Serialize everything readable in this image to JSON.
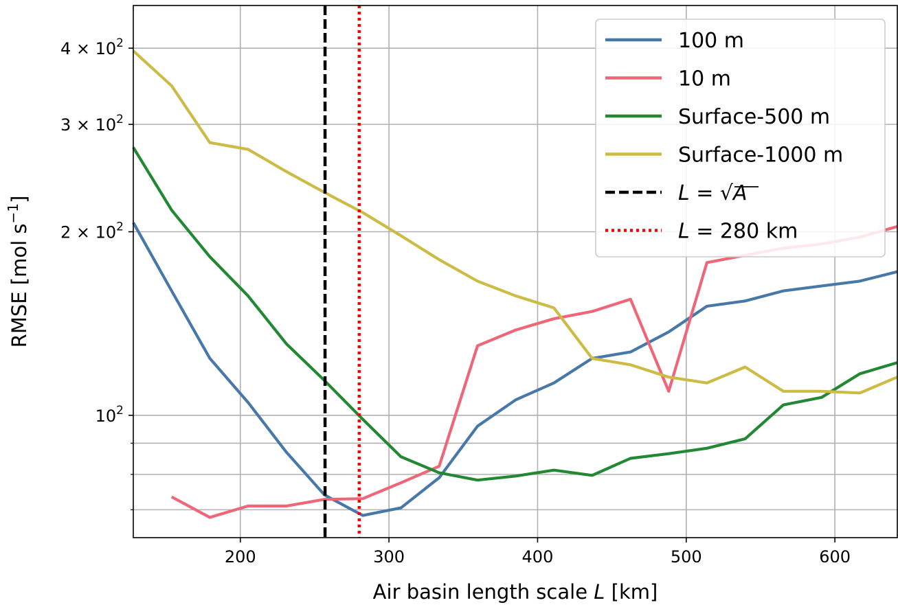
{
  "chart_data": {
    "type": "line",
    "title": "",
    "xlabel": "Air basin length scale L [km]",
    "ylabel": "RMSE [mol s⁻¹]",
    "xlim": [
      128,
      642
    ],
    "ylim": [
      63,
      470
    ],
    "yscale": "log",
    "grid": true,
    "legend_position": "top-right",
    "x_ticks": [
      {
        "value": 200,
        "label": "200"
      },
      {
        "value": 300,
        "label": "300"
      },
      {
        "value": 400,
        "label": "400"
      },
      {
        "value": 500,
        "label": "500"
      },
      {
        "value": 600,
        "label": "600"
      }
    ],
    "y_major_ticks": [
      {
        "value": 100,
        "label": "10²"
      },
      {
        "value": 200,
        "label": "2 × 10²"
      },
      {
        "value": 300,
        "label": "3 × 10²"
      },
      {
        "value": 400,
        "label": "4 × 10²"
      }
    ],
    "y_minor_grid": [
      70,
      80,
      90
    ],
    "series": [
      {
        "name": "100 m",
        "color": "#4878a8",
        "style": "solid",
        "x": [
          128,
          153.8,
          179.5,
          205.2,
          231,
          256.7,
          282.4,
          308.1,
          333.8,
          359.6,
          385.3,
          411,
          436.7,
          462.5,
          488.2,
          513.9,
          539.6,
          565.3,
          591.1,
          616.8,
          642
        ],
        "y": [
          207,
          160,
          124,
          105,
          87,
          74,
          68.5,
          70.5,
          79,
          96,
          106,
          113,
          124,
          127,
          137,
          151,
          154,
          160,
          163,
          166,
          172
        ]
      },
      {
        "name": "10 m",
        "color": "#ee6677",
        "style": "solid",
        "x": [
          153.8,
          179.5,
          205.2,
          231,
          256.7,
          282.4,
          308.1,
          333.8,
          359.6,
          385.3,
          411,
          436.7,
          462.5,
          488.2,
          513.9,
          539.6,
          565.3,
          591.1,
          616.8,
          642
        ],
        "y": [
          73.5,
          68,
          71,
          71,
          72.8,
          73,
          77.5,
          82.5,
          130,
          138,
          144,
          148,
          155,
          109.5,
          178,
          183,
          188,
          191,
          196,
          204
        ]
      },
      {
        "name": "Surface-500 m",
        "color": "#228833",
        "style": "solid",
        "x": [
          128,
          153.8,
          179.5,
          205.2,
          231,
          256.7,
          282.4,
          308.1,
          333.8,
          359.6,
          385.3,
          411,
          436.7,
          462.5,
          488.2,
          513.9,
          539.6,
          565.3,
          591.1,
          616.8,
          642
        ],
        "y": [
          275,
          217,
          182,
          157,
          131,
          114,
          98.5,
          85.5,
          80.5,
          78.3,
          79.5,
          81.3,
          79.7,
          85,
          86.5,
          88.3,
          91.5,
          104,
          107,
          117,
          122
        ]
      },
      {
        "name": "Surface-1000 m",
        "color": "#ccbb44",
        "style": "solid",
        "x": [
          128,
          153.8,
          179.5,
          205.2,
          231,
          256.7,
          282.4,
          308.1,
          333.8,
          359.6,
          385.3,
          411,
          436.7,
          462.5,
          488.2,
          513.9,
          539.6,
          565.3,
          591.1,
          616.8,
          642
        ],
        "y": [
          396,
          347,
          280,
          273,
          251,
          232,
          215,
          197,
          180,
          166,
          157,
          150,
          124,
          121,
          115.5,
          113,
          120,
          109.5,
          109.5,
          108.8,
          115.5
        ]
      },
      {
        "name": "L = √A",
        "color": "#000000",
        "style": "dashed",
        "vertical_x": 257
      },
      {
        "name": "L = 280 km",
        "color": "#ff0000",
        "style": "dotted",
        "vertical_x": 280
      }
    ]
  }
}
